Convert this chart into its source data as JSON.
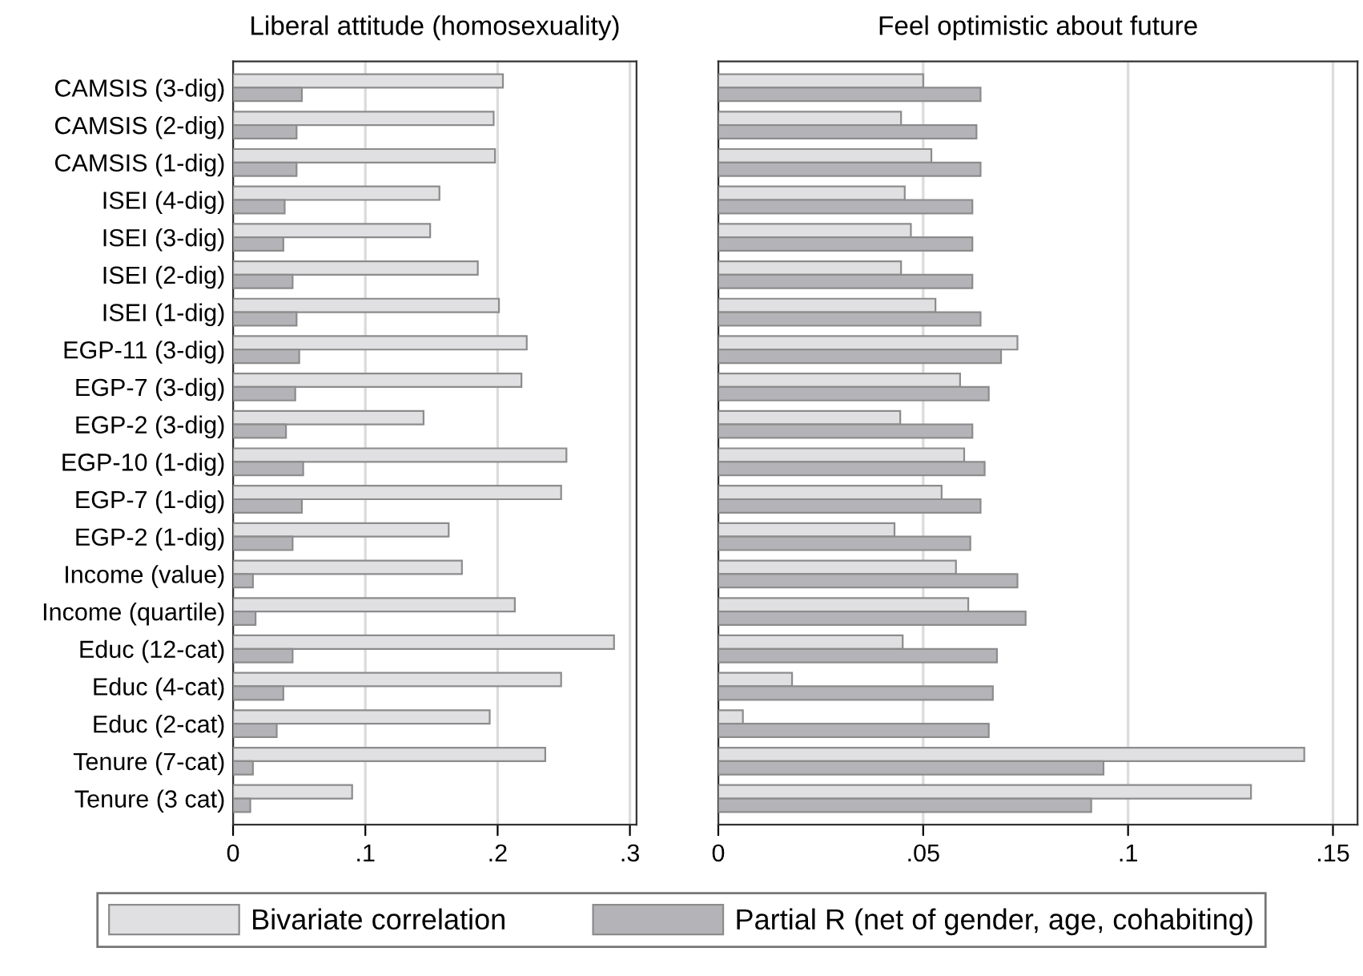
{
  "chart_data": [
    {
      "type": "bar",
      "orientation": "horizontal",
      "title": "Liberal attitude (homosexuality)",
      "categories": [
        "CAMSIS (3-dig)",
        "CAMSIS (2-dig)",
        "CAMSIS (1-dig)",
        "ISEI (4-dig)",
        "ISEI (3-dig)",
        "ISEI (2-dig)",
        "ISEI (1-dig)",
        "EGP-11 (3-dig)",
        "EGP-7 (3-dig)",
        "EGP-2 (3-dig)",
        "EGP-10 (1-dig)",
        "EGP-7 (1-dig)",
        "EGP-2 (1-dig)",
        "Income (value)",
        "Income (quartile)",
        "Educ (12-cat)",
        "Educ (4-cat)",
        "Educ (2-cat)",
        "Tenure (7-cat)",
        "Tenure (3 cat)"
      ],
      "series": [
        {
          "name": "Bivariate correlation",
          "color": "#e0e0e2",
          "values": [
            0.204,
            0.197,
            0.198,
            0.156,
            0.149,
            0.185,
            0.201,
            0.222,
            0.218,
            0.144,
            0.252,
            0.248,
            0.163,
            0.173,
            0.213,
            0.288,
            0.248,
            0.194,
            0.236,
            0.09
          ]
        },
        {
          "name": "Partial R (net of gender, age, cohabiting)",
          "color": "#b4b4b8",
          "values": [
            0.052,
            0.048,
            0.048,
            0.039,
            0.038,
            0.045,
            0.048,
            0.05,
            0.047,
            0.04,
            0.053,
            0.052,
            0.045,
            0.015,
            0.017,
            0.045,
            0.038,
            0.033,
            0.015,
            0.013
          ]
        }
      ],
      "xlim": [
        0,
        0.305
      ],
      "xticks": [
        {
          "value": 0,
          "label": "0"
        },
        {
          "value": 0.1,
          "label": ".1"
        },
        {
          "value": 0.2,
          "label": ".2"
        },
        {
          "value": 0.3,
          "label": ".3"
        }
      ],
      "grid": "x",
      "legend": "bottom"
    },
    {
      "type": "bar",
      "orientation": "horizontal",
      "title": "Feel optimistic about future",
      "categories": [
        null,
        null,
        null,
        null,
        null,
        null,
        null,
        null,
        null,
        null,
        null,
        null,
        null,
        null,
        null,
        null,
        null,
        null,
        null,
        null
      ],
      "series": [
        {
          "color": "#e0e0e2",
          "values": [
            0.05,
            0.0446,
            0.052,
            0.0455,
            0.047,
            0.0446,
            0.053,
            0.073,
            0.059,
            0.0444,
            0.06,
            0.0545,
            0.043,
            0.058,
            0.061,
            0.045,
            0.018,
            0.006,
            0.143,
            0.13
          ]
        },
        {
          "color": "#b4b4b8",
          "values": [
            0.064,
            0.063,
            0.064,
            0.062,
            0.062,
            0.062,
            0.064,
            0.069,
            0.066,
            0.062,
            0.065,
            0.064,
            0.0615,
            0.073,
            0.075,
            0.068,
            0.067,
            0.066,
            0.094,
            0.091
          ]
        }
      ],
      "xlim": [
        0,
        0.156
      ],
      "xticks": [
        {
          "value": 0,
          "label": "0"
        },
        {
          "value": 0.05,
          "label": ".05"
        },
        {
          "value": 0.1,
          "label": ".1"
        },
        {
          "value": 0.15,
          "label": ".15"
        }
      ],
      "grid": "x",
      "tick_labels": "x"
    }
  ]
}
